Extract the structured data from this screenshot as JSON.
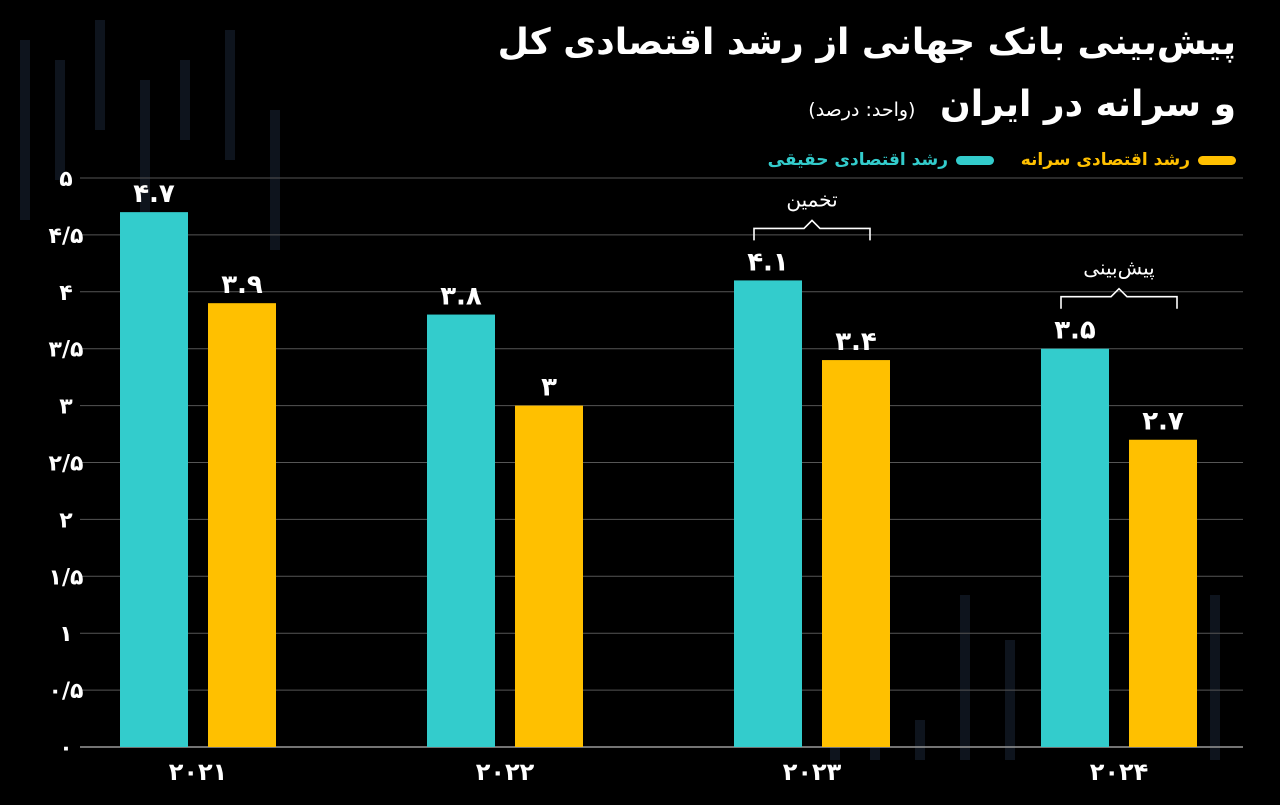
{
  "header": {
    "title_line1": "پیش‌بینی بانک جهانی از رشد اقتصادی کل",
    "title_line2": "و سرانه در ایران",
    "unit": "(واحد: درصد)"
  },
  "colors": {
    "real_growth": "#33cccc",
    "per_capita": "#ffc000",
    "grid": "#555555"
  },
  "chart_data": {
    "type": "bar",
    "categories": [
      "۲۰۲۱",
      "۲۰۲۲",
      "۲۰۲۳",
      "۲۰۲۴"
    ],
    "series": [
      {
        "name": "رشد اقتصادی حقیقی",
        "values": [
          4.7,
          3.8,
          4.1,
          3.5
        ],
        "labels": [
          "۴.۷",
          "۳.۸",
          "۴.۱",
          "۳.۵"
        ]
      },
      {
        "name": "رشد اقتصادی سرانه",
        "values": [
          3.9,
          3.0,
          3.4,
          2.7
        ],
        "labels": [
          "۳.۹",
          "۳",
          "۳.۴",
          "۲.۷"
        ]
      }
    ],
    "ylim": [
      0,
      5
    ],
    "yticks": [
      0,
      0.5,
      1,
      1.5,
      2,
      2.5,
      3,
      3.5,
      4,
      4.5,
      5
    ],
    "ytick_labels": [
      "۰",
      "۰/۵",
      "۱",
      "۱/۵",
      "۲",
      "۲/۵",
      "۳",
      "۳/۵",
      "۴",
      "۴/۵",
      "۵"
    ],
    "grid": true,
    "legend_position": "top-right",
    "annotations": [
      {
        "text": "تخمین",
        "category": "۲۰۲۳"
      },
      {
        "text": "پیش‌بینی",
        "category": "۲۰۲۴"
      }
    ]
  }
}
